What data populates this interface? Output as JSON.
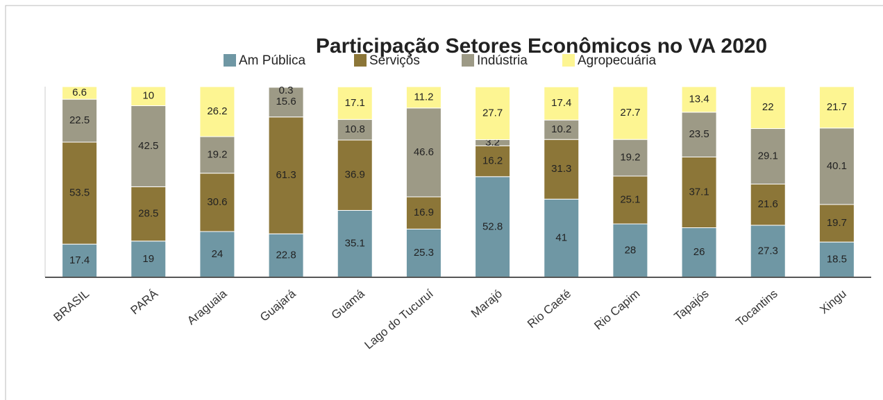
{
  "chart_data": {
    "type": "stacked_bar",
    "title": "Participação Setores Econômicos no VA 2020",
    "categories": [
      "BRASIL",
      "PARÁ",
      "Araguaia",
      "Guajará",
      "Guamá",
      "Lago do Tucuruí",
      "Marajó",
      "Rio Caeté",
      "Rio Capim",
      "Tapajós",
      "Tocantins",
      "Xingu"
    ],
    "series": [
      {
        "name": "Am Pública",
        "color": "#6f97a4",
        "values": [
          17.4,
          19,
          24,
          22.8,
          35.1,
          25.3,
          52.8,
          41,
          28,
          26,
          27.3,
          18.5
        ]
      },
      {
        "name": "Serviços",
        "color": "#8c7638",
        "values": [
          53.5,
          28.5,
          30.6,
          61.3,
          36.9,
          16.9,
          16.2,
          31.3,
          25.1,
          37.1,
          21.6,
          19.7
        ]
      },
      {
        "name": "Indústria",
        "color": "#9d9a86",
        "values": [
          22.5,
          42.5,
          19.2,
          15.6,
          10.8,
          46.6,
          3.2,
          10.2,
          19.2,
          23.5,
          29.1,
          40.1
        ]
      },
      {
        "name": "Agropecuária",
        "color": "#fdf592",
        "values": [
          6.6,
          10,
          26.2,
          0.3,
          17.1,
          11.2,
          27.7,
          17.4,
          27.7,
          13.4,
          22,
          21.7
        ]
      }
    ],
    "ylim": [
      0,
      100
    ]
  }
}
